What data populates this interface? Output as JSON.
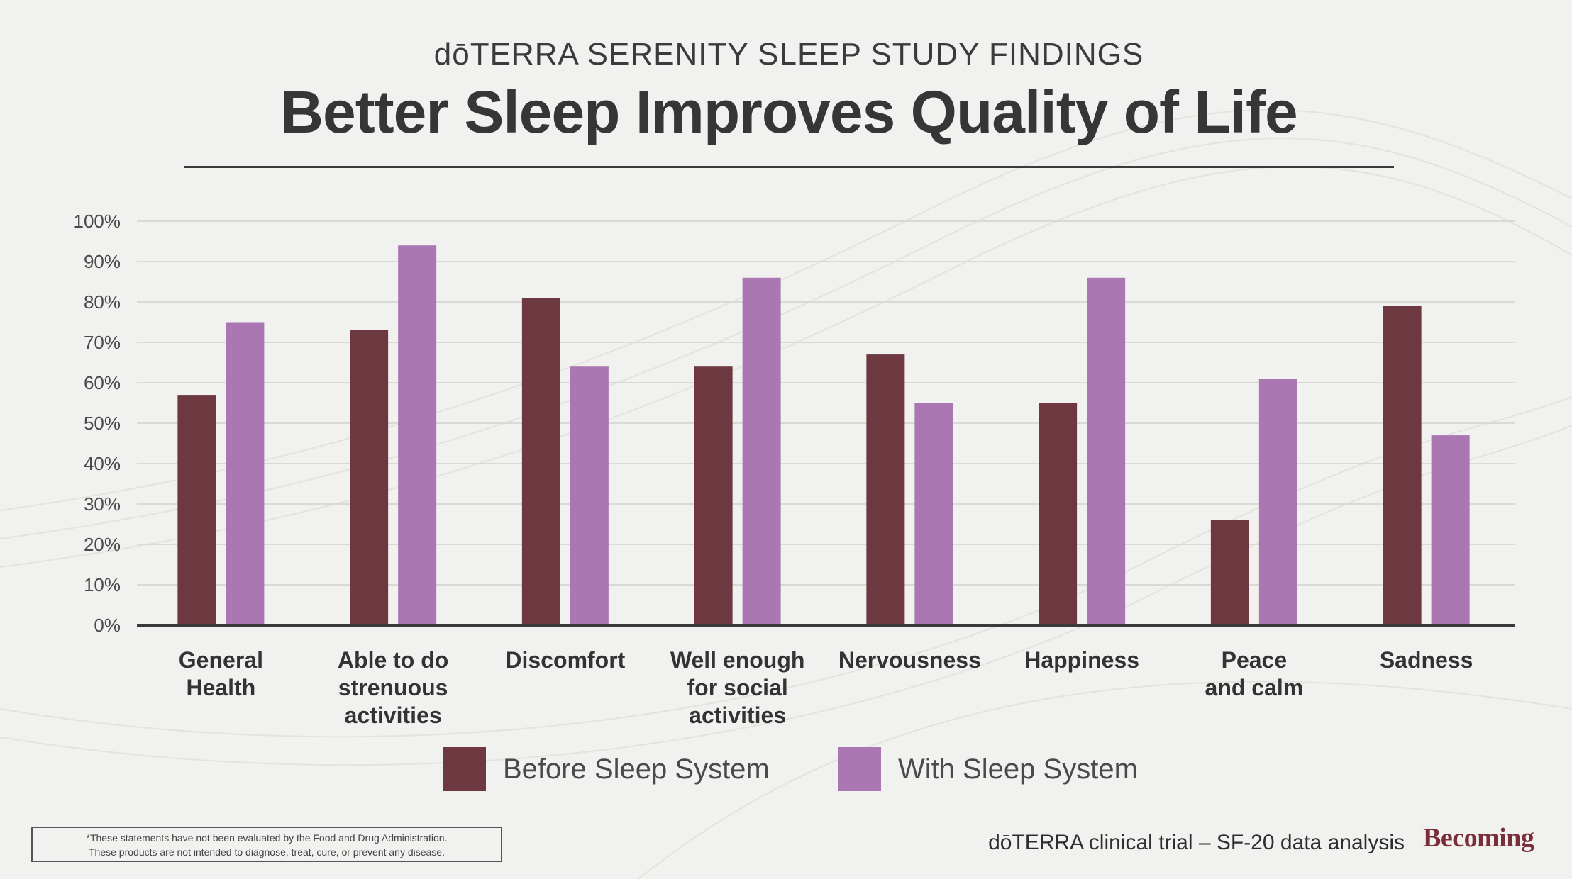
{
  "header": {
    "subtitle": "dōTERRA SERENITY SLEEP STUDY FINDINGS",
    "title": "Better Sleep Improves Quality of Life"
  },
  "chart_data": {
    "type": "bar",
    "title": "Better Sleep Improves Quality of Life",
    "xlabel": "",
    "ylabel": "",
    "ylim": [
      0,
      100
    ],
    "y_ticks": [
      "0%",
      "10%",
      "20%",
      "30%",
      "40%",
      "50%",
      "60%",
      "70%",
      "80%",
      "90%",
      "100%"
    ],
    "grid": true,
    "legend_position": "bottom",
    "categories": [
      [
        "General",
        "Health"
      ],
      [
        "Able to do",
        "strenuous",
        "activities"
      ],
      [
        "Discomfort"
      ],
      [
        "Well enough",
        "for social",
        "activities"
      ],
      [
        "Nervousness"
      ],
      [
        "Happiness"
      ],
      [
        "Peace",
        "and calm"
      ],
      [
        "Sadness"
      ]
    ],
    "series": [
      {
        "name": "Before Sleep System",
        "color": "#6e3840",
        "values": [
          57,
          73,
          81,
          64,
          67,
          55,
          26,
          79
        ]
      },
      {
        "name": "With Sleep System",
        "color": "#ab77b2",
        "values": [
          75,
          94,
          64,
          86,
          55,
          86,
          61,
          47
        ]
      }
    ]
  },
  "legend": {
    "before_label": "Before Sleep System",
    "with_label": "With Sleep System",
    "before_color": "#6e3840",
    "with_color": "#ab77b2"
  },
  "footer": {
    "disclaimer_line1": "*These statements have not been evaluated by the Food and Drug Administration.",
    "disclaimer_line2": "These products are not intended to diagnose, treat, cure, or prevent any disease.",
    "source": "dōTERRA clinical trial – SF-20 data analysis",
    "logo": "Becoming"
  }
}
